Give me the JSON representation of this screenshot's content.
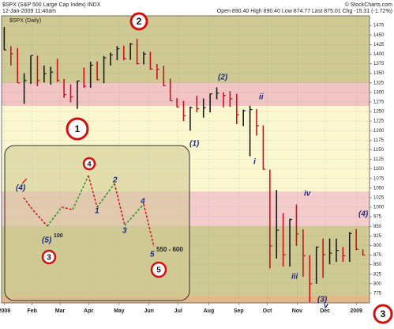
{
  "chart_data": {
    "type": "ohlc",
    "title": "$SPX (S&P 500 Large Cap Index) INDX",
    "subtitle": "12-Jan-2009 11:40am",
    "quote": "Open 890.40  High 890.40  Low 874.77  Last 875.01  Chg -15.31 (-1.72%)",
    "credit": "© StockCharts.com",
    "legend": "$SPX (Daily)",
    "up_color": "#1a1a1a",
    "down_color": "#cc1020",
    "categories": [
      null,
      null,
      null,
      null,
      null,
      null,
      null,
      null,
      null,
      null,
      null,
      null,
      null,
      null,
      null,
      null,
      null,
      null,
      null,
      null,
      null,
      null,
      null,
      null,
      null,
      null,
      null,
      null,
      null,
      null,
      null,
      null,
      null,
      null,
      null,
      null,
      null,
      null,
      null,
      null,
      null,
      null,
      null,
      null,
      null,
      null,
      null,
      null,
      null,
      null,
      null,
      null,
      null,
      null,
      null
    ],
    "series": [
      {
        "name": "High",
        "values": [
          1471,
          1421,
          1416,
          1350,
          1396,
          1396,
          1370,
          1367,
          1388,
          1335,
          1321,
          1330,
          1365,
          1380,
          1381,
          1395,
          1404,
          1421,
          1422,
          1429,
          1440,
          1406,
          1406,
          1374,
          1370,
          1336,
          1285,
          1278,
          1263,
          1291,
          1284,
          1297,
          1313,
          1300,
          1303,
          1296,
          1255,
          1265,
          1256,
          1214,
          1098,
          1045,
          985,
          970,
          1007,
          942,
          875,
          897,
          918,
          918,
          918,
          896,
          935,
          943,
          890
        ]
      },
      {
        "name": "Low",
        "values": [
          1411,
          1370,
          1325,
          1270,
          1322,
          1316,
          1326,
          1320,
          1328,
          1286,
          1274,
          1257,
          1312,
          1312,
          1331,
          1324,
          1370,
          1384,
          1384,
          1385,
          1373,
          1373,
          1359,
          1334,
          1316,
          1278,
          1261,
          1225,
          1200,
          1248,
          1234,
          1248,
          1282,
          1261,
          1262,
          1217,
          1212,
          1133,
          1187,
          1098,
          840,
          866,
          845,
          845,
          899,
          818,
          752,
          800,
          815,
          851,
          857,
          857,
          857,
          888,
          874
        ]
      },
      {
        "name": "Close",
        "values": [
          1411,
          1401,
          1325,
          1331,
          1396,
          1331,
          1349,
          1353,
          1331,
          1294,
          1288,
          1330,
          1316,
          1371,
          1333,
          1390,
          1398,
          1414,
          1388,
          1426,
          1375,
          1400,
          1361,
          1360,
          1318,
          1278,
          1262,
          1239,
          1260,
          1257,
          1260,
          1296,
          1298,
          1292,
          1283,
          1242,
          1252,
          1255,
          1213,
          1099,
          899,
          940,
          876,
          968,
          930,
          873,
          800,
          896,
          876,
          880,
          887,
          873,
          931,
          890,
          875
        ]
      }
    ],
    "xlim": [
      -0.4,
      55
    ],
    "xticks": [
      {
        "value": 0,
        "label": "2008"
      },
      {
        "value": 4.2,
        "label": "Feb"
      },
      {
        "value": 8.4,
        "label": "Mar"
      },
      {
        "value": 12.7,
        "label": "Apr"
      },
      {
        "value": 17.3,
        "label": "May"
      },
      {
        "value": 21.8,
        "label": "Jun"
      },
      {
        "value": 26.2,
        "label": "Jul"
      },
      {
        "value": 30.8,
        "label": "Aug"
      },
      {
        "value": 35.3,
        "label": "Sep"
      },
      {
        "value": 39.6,
        "label": "Oct"
      },
      {
        "value": 44.1,
        "label": "Nov"
      },
      {
        "value": 48.3,
        "label": "Dec"
      },
      {
        "value": 53,
        "label": "2009"
      }
    ],
    "ylim": [
      750,
      1500
    ],
    "yticks": [
      775,
      800,
      825,
      850,
      875,
      900,
      925,
      950,
      975,
      1000,
      1025,
      1050,
      1075,
      1100,
      1125,
      1150,
      1175,
      1200,
      1225,
      1250,
      1275,
      1300,
      1325,
      1350,
      1375,
      1400,
      1425,
      1450,
      1475
    ],
    "grid": true,
    "circles": [
      "1",
      "2",
      "3"
    ],
    "waves": [
      "(1)",
      "(2)",
      "i",
      "ii",
      "iii",
      "iv",
      "v",
      "(3)",
      "(4)"
    ],
    "inset": {
      "labels": [
        "(4)",
        "(5)",
        "100",
        "3",
        "4",
        "2",
        "1",
        "3",
        "4",
        "5",
        "550 - 600",
        "5"
      ]
    }
  }
}
